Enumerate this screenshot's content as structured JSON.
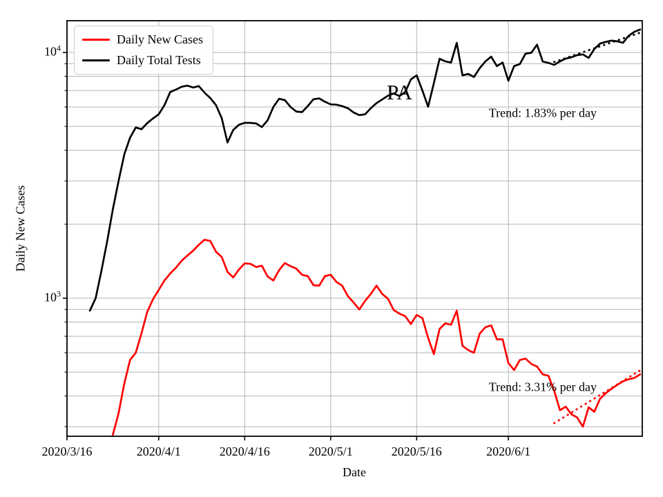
{
  "chart_data": {
    "type": "line",
    "title": "",
    "xlabel": "Date",
    "ylabel": "Daily New Cases",
    "yscale": "log",
    "ylim": [
      278,
      13640
    ],
    "grid": true,
    "legend_position": "upper-left",
    "x_tick_labels": [
      "2020/3/16",
      "2020/4/1",
      "2020/4/16",
      "2020/5/1",
      "2020/5/16",
      "2020/6/1"
    ],
    "y_ticks": [
      {
        "base": "10",
        "exponent": "3",
        "value": 1000
      },
      {
        "base": "10",
        "exponent": "4",
        "value": 10000
      }
    ],
    "series": [
      {
        "name": "Daily New Cases",
        "color": "#ff0000",
        "start_date": "2020/3/24",
        "values": [
          278,
          340,
          450,
          560,
          600,
          720,
          880,
          990,
          1080,
          1180,
          1260,
          1330,
          1420,
          1490,
          1560,
          1650,
          1730,
          1710,
          1545,
          1470,
          1280,
          1215,
          1310,
          1385,
          1380,
          1340,
          1355,
          1225,
          1180,
          1300,
          1390,
          1350,
          1320,
          1245,
          1230,
          1130,
          1125,
          1230,
          1245,
          1165,
          1125,
          1020,
          960,
          900,
          975,
          1040,
          1125,
          1040,
          995,
          895,
          865,
          845,
          785,
          855,
          830,
          690,
          592,
          750,
          790,
          780,
          890,
          640,
          615,
          600,
          717,
          762,
          775,
          680,
          680,
          545,
          510,
          560,
          568,
          540,
          527,
          490,
          483,
          420,
          350,
          362,
          337,
          327,
          300,
          360,
          345,
          390,
          411,
          428,
          444,
          459,
          468,
          474,
          490
        ]
      },
      {
        "name": "Daily Total Tests",
        "color": "#000000",
        "start_date": "2020/3/20",
        "values": [
          890,
          1000,
          1290,
          1700,
          2300,
          3000,
          3850,
          4500,
          4950,
          4870,
          5160,
          5390,
          5600,
          6100,
          6900,
          7060,
          7250,
          7330,
          7200,
          7300,
          6860,
          6520,
          6100,
          5400,
          4300,
          4840,
          5080,
          5170,
          5170,
          5140,
          4970,
          5300,
          6000,
          6480,
          6400,
          6000,
          5750,
          5720,
          6050,
          6450,
          6500,
          6300,
          6150,
          6130,
          6050,
          5930,
          5700,
          5560,
          5600,
          5930,
          6220,
          6440,
          6670,
          6810,
          6650,
          6900,
          7770,
          8070,
          7000,
          6010,
          7500,
          9430,
          9200,
          9100,
          10950,
          8070,
          8180,
          7950,
          8630,
          9200,
          9620,
          8800,
          9100,
          7670,
          8800,
          8970,
          9900,
          9970,
          10760,
          9180,
          9070,
          8900,
          9200,
          9440,
          9560,
          9750,
          9820,
          9500,
          10330,
          10870,
          11040,
          11180,
          11100,
          10950,
          11700,
          12140,
          12400
        ]
      }
    ],
    "trend_lines": [
      {
        "series": "Daily Total Tests",
        "rate_label": "Trend: 1.83% per day",
        "color": "#000000",
        "start_date": "2020/6/9",
        "end_date": "2020/6/24",
        "start_value": 9150,
        "end_value": 12040,
        "style": "dotted"
      },
      {
        "series": "Daily New Cases",
        "rate_label": "Trend: 3.31% per day",
        "color": "#ff0000",
        "start_date": "2020/6/9",
        "end_date": "2020/6/24",
        "start_value": 310,
        "end_value": 509,
        "style": "dotted"
      }
    ],
    "annotations": [
      {
        "text": "PA",
        "date": "2020/5/13",
        "value": 6850,
        "font_px": 31,
        "color": "#000000"
      },
      {
        "text": "Trend: 1.83% per day",
        "date": "2020/6/7",
        "value": 5650,
        "font_px": 18,
        "color": "#000000"
      },
      {
        "text": "Trend: 3.31% per day",
        "date": "2020/6/7",
        "value": 434,
        "font_px": 18,
        "color": "#000000"
      }
    ]
  },
  "legend": {
    "entries": [
      {
        "label": "Daily New Cases",
        "color": "#ff0000"
      },
      {
        "label": "Daily Total Tests",
        "color": "#000000"
      }
    ]
  },
  "colors": {
    "grid": "#b4b4b4",
    "axis": "#000000",
    "background": "#ffffff"
  }
}
